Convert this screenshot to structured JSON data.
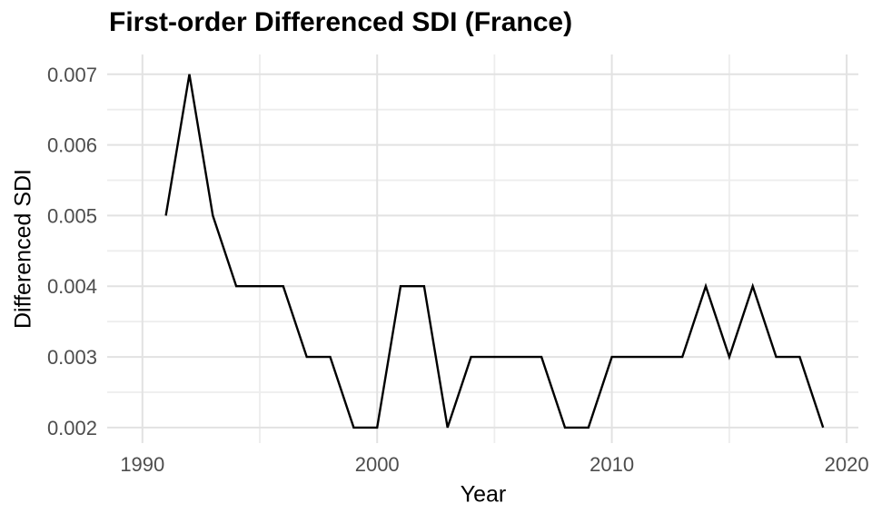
{
  "title": "First-order Differenced SDI (France)",
  "chart_data": {
    "type": "line",
    "title": "First-order Differenced SDI (France)",
    "xlabel": "Year",
    "ylabel": "Differenced SDI",
    "x": [
      1991,
      1992,
      1993,
      1994,
      1995,
      1996,
      1997,
      1998,
      1999,
      2000,
      2001,
      2002,
      2003,
      2004,
      2005,
      2006,
      2007,
      2008,
      2009,
      2010,
      2011,
      2012,
      2013,
      2014,
      2015,
      2016,
      2017,
      2018,
      2019
    ],
    "y": [
      0.005,
      0.007,
      0.005,
      0.004,
      0.004,
      0.004,
      0.003,
      0.003,
      0.002,
      0.002,
      0.004,
      0.004,
      0.002,
      0.003,
      0.003,
      0.003,
      0.003,
      0.002,
      0.002,
      0.003,
      0.003,
      0.003,
      0.003,
      0.004,
      0.003,
      0.004,
      0.003,
      0.003,
      0.002
    ],
    "xlim": [
      1988.5,
      2020.5
    ],
    "ylim": [
      0.00178,
      0.00728
    ],
    "x_major_ticks": [
      1990,
      2000,
      2010,
      2020
    ],
    "x_tick_labels": [
      "1990",
      "2000",
      "2010",
      "2020"
    ],
    "x_minor_ticks": [
      1995,
      2005,
      2015
    ],
    "y_major_ticks": [
      0.002,
      0.003,
      0.004,
      0.005,
      0.006,
      0.007
    ],
    "y_tick_labels": [
      "0.002",
      "0.003",
      "0.004",
      "0.005",
      "0.006",
      "0.007"
    ],
    "y_minor_ticks": [
      0.0025,
      0.0035,
      0.0045,
      0.0055,
      0.0065
    ],
    "grid": "on",
    "legend": "none",
    "colors": {
      "line": "#000000",
      "grid_major": "#E2E2E2",
      "grid_minor": "#EDEDED",
      "tick_label": "#4D4D4D",
      "title": "#000000",
      "axis_title": "#000000",
      "background": "#FFFFFF"
    }
  }
}
